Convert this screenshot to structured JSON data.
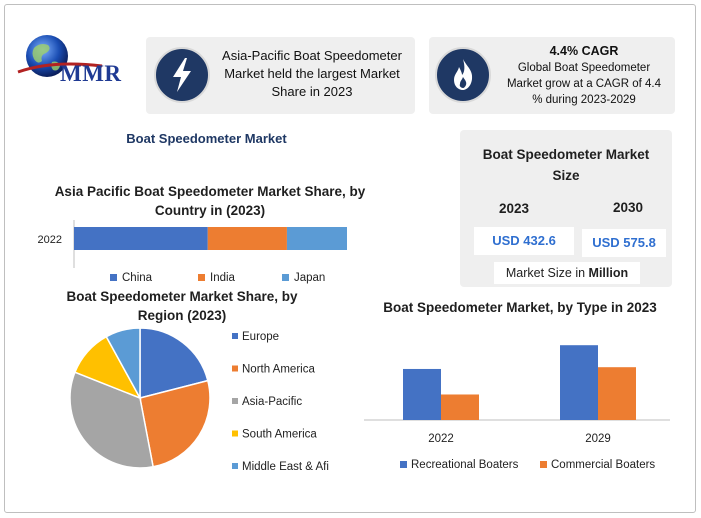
{
  "logo": {
    "text": "MMR"
  },
  "colors": {
    "blue": "#4472c4",
    "orange": "#ed7d31",
    "gray": "#a5a5a5",
    "yellow": "#ffc000",
    "lightblue": "#5b9bd5",
    "navy": "#1f3864",
    "value_text": "#2f6fd0"
  },
  "info_cards": [
    {
      "icon": "lightning-bolt-icon",
      "lines": [
        "Asia-Pacific Boat Speedometer",
        "Market held the largest Market",
        "Share in 2023"
      ]
    },
    {
      "icon": "flame-icon",
      "heading": "4.4% CAGR",
      "lines": [
        "Global Boat Speedometer",
        "Market grow at a CAGR of 4.4",
        "% during 2023-2029"
      ]
    }
  ],
  "market_title": "Boat Speedometer Market",
  "market_size": {
    "title_lines": [
      "Boat Speedometer Market",
      "Size"
    ],
    "years": [
      "2023",
      "2030"
    ],
    "values": [
      "USD 432.6",
      "USD 575.8"
    ],
    "unit_prefix": "Market Size in ",
    "unit_bold": "Million"
  },
  "chart_data": [
    {
      "type": "bar",
      "orientation": "horizontal-stacked",
      "title": "Asia Pacific Boat Speedometer Market Share, by Country in (2023)",
      "categories": [
        "2022"
      ],
      "series": [
        {
          "name": "China",
          "values": [
            49
          ],
          "color": "#4472c4"
        },
        {
          "name": "India",
          "values": [
            29
          ],
          "color": "#ed7d31"
        },
        {
          "name": "Japan",
          "values": [
            22
          ],
          "color": "#5b9bd5"
        }
      ],
      "xlim": [
        0,
        100
      ],
      "legend": "bottom"
    },
    {
      "type": "pie",
      "title": "Boat Speedometer Market Share, by Region (2023)",
      "labels": [
        "Europe",
        "North America",
        "Asia-Pacific",
        "South America",
        "Middle East & Afi"
      ],
      "values": [
        21,
        26,
        34,
        11,
        8
      ],
      "colors": [
        "#4472c4",
        "#ed7d31",
        "#a5a5a5",
        "#ffc000",
        "#5b9bd5"
      ],
      "legend": "right"
    },
    {
      "type": "bar",
      "title": "Boat Speedometer Market, by Type in 2023",
      "categories": [
        "2022",
        "2029"
      ],
      "series": [
        {
          "name": "Recreational Boaters",
          "values": [
            58,
            85
          ],
          "color": "#4472c4"
        },
        {
          "name": "Commercial Boaters",
          "values": [
            29,
            60
          ],
          "color": "#ed7d31"
        }
      ],
      "ylim": [
        0,
        100
      ],
      "legend": "bottom"
    }
  ]
}
